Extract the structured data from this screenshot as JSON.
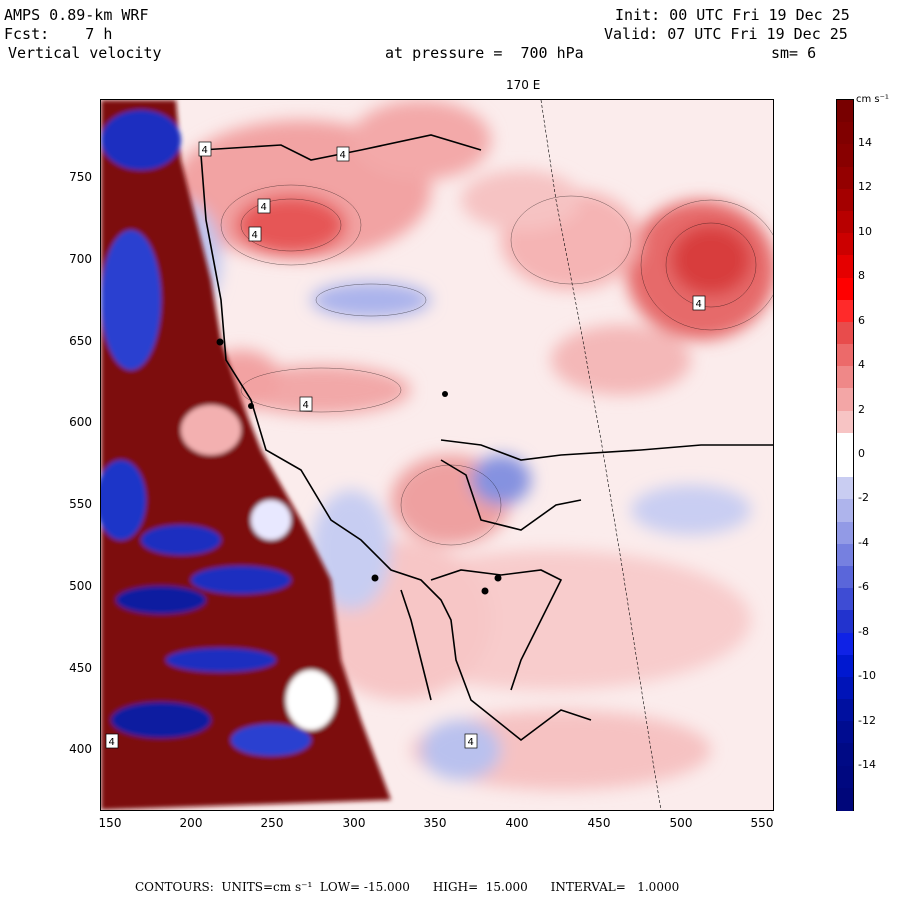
{
  "header": {
    "model": "AMPS 0.89-km WRF",
    "init": "Init: 00 UTC Fri 19 Dec 25",
    "fcst": "Fcst:    7 h",
    "valid": "Valid: 07 UTC Fri 19 Dec 25",
    "field": "Vertical velocity",
    "pressure": "at pressure =  700 hPa",
    "smooth": "sm= 6"
  },
  "map": {
    "meridian_label": "170 E",
    "x_ticks": [
      "150",
      "200",
      "250",
      "300",
      "350",
      "400",
      "450",
      "500",
      "550"
    ],
    "y_ticks": [
      "750",
      "700",
      "650",
      "600",
      "550",
      "500",
      "450",
      "400"
    ],
    "x_range": [
      143,
      555
    ],
    "y_range": [
      363,
      797
    ],
    "contour_label": "4"
  },
  "colorbar": {
    "units": "cm s⁻¹",
    "labels": [
      "14",
      "12",
      "10",
      "8",
      "6",
      "4",
      "2",
      "0",
      "-2",
      "-4",
      "-6",
      "-8",
      "-10",
      "-12",
      "-14"
    ],
    "min": -16,
    "max": 16
  },
  "footer": {
    "text": "CONTOURS:  UNITS=cm s⁻¹  LOW= -15.000      HIGH=  15.000      INTERVAL=   1.0000"
  },
  "colors": {
    "positive_strong": "#8b0000",
    "positive_weak": "#fbd2d2",
    "negative_strong": "#00008b",
    "negative_weak": "#d2d6f5",
    "neutral": "#ffffff"
  }
}
